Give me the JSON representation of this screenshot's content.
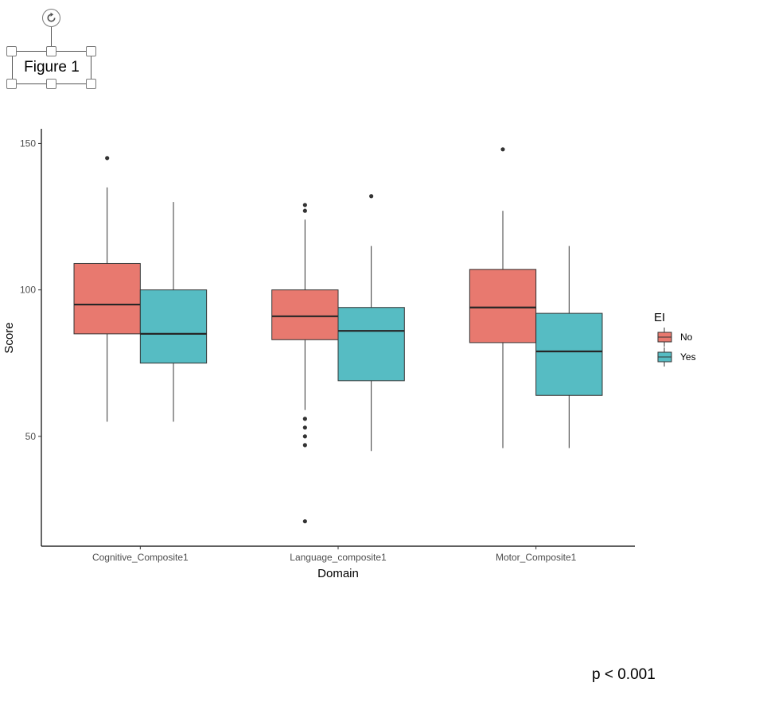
{
  "figure_label": "Figure 1",
  "p_value": "p < 0.001",
  "icons": {
    "rotate": "rotate-icon"
  },
  "chart_data": {
    "type": "boxplot",
    "title": "",
    "xlabel": "Domain",
    "ylabel": "Score",
    "ylim": [
      12.5,
      155
    ],
    "yticks": [
      50,
      100,
      150
    ],
    "grid": false,
    "legend": {
      "title": "EI",
      "position": "right",
      "entries": [
        "No",
        "Yes"
      ]
    },
    "categories": [
      "Cognitive_Composite1",
      "Language_composite1",
      "Motor_Composite1"
    ],
    "series": [
      {
        "name": "No",
        "color": "#e8796f",
        "boxes": [
          {
            "whisker_low": 55,
            "q1": 85,
            "median": 95,
            "q3": 109,
            "whisker_high": 135,
            "outliers": [
              145
            ]
          },
          {
            "whisker_low": 59,
            "q1": 83,
            "median": 91,
            "q3": 100,
            "whisker_high": 124,
            "outliers": [
              56,
              53,
              50,
              47,
              21,
              127,
              129
            ]
          },
          {
            "whisker_low": 46,
            "q1": 82,
            "median": 94,
            "q3": 107,
            "whisker_high": 127,
            "outliers": [
              148
            ]
          }
        ]
      },
      {
        "name": "Yes",
        "color": "#56bcc3",
        "boxes": [
          {
            "whisker_low": 55,
            "q1": 75,
            "median": 85,
            "q3": 100,
            "whisker_high": 130,
            "outliers": []
          },
          {
            "whisker_low": 45,
            "q1": 69,
            "median": 86,
            "q3": 94,
            "whisker_high": 115,
            "outliers": [
              132
            ]
          },
          {
            "whisker_low": 46,
            "q1": 64,
            "median": 79,
            "q3": 92,
            "whisker_high": 115,
            "outliers": []
          }
        ]
      }
    ]
  }
}
